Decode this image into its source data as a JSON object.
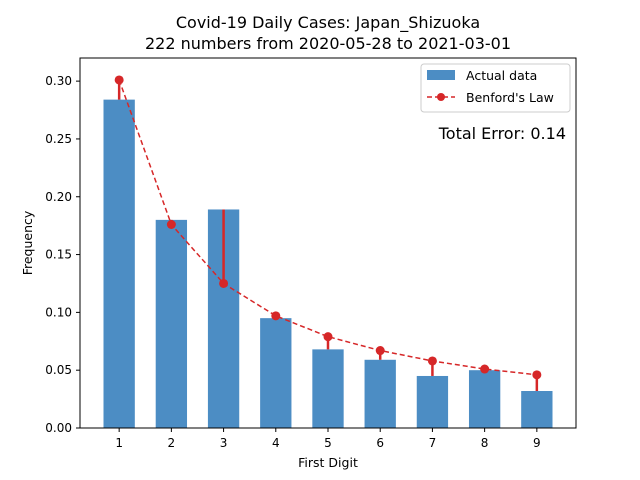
{
  "chart_data": {
    "type": "bar",
    "title": "Covid-19 Daily Cases: Japan_Shizuoka",
    "subtitle": "222 numbers from 2020-05-28 to 2021-03-01",
    "xlabel": "First Digit",
    "ylabel": "Frequency",
    "categories": [
      "1",
      "2",
      "3",
      "4",
      "5",
      "6",
      "7",
      "8",
      "9"
    ],
    "x": [
      1,
      2,
      3,
      4,
      5,
      6,
      7,
      8,
      9
    ],
    "ylim": [
      0,
      0.32
    ],
    "yticks": [
      "0.00",
      "0.05",
      "0.10",
      "0.15",
      "0.20",
      "0.25",
      "0.30"
    ],
    "grid": false,
    "legend_position": "top-right",
    "series": [
      {
        "name": "Actual data",
        "kind": "bar",
        "color": "#4c8dc4",
        "values": [
          0.284,
          0.18,
          0.189,
          0.095,
          0.068,
          0.059,
          0.045,
          0.05,
          0.032
        ]
      },
      {
        "name": "Benford's Law",
        "kind": "line-dashed-markers",
        "color": "#d62728",
        "values": [
          0.301,
          0.176,
          0.125,
          0.097,
          0.079,
          0.067,
          0.058,
          0.051,
          0.046
        ]
      }
    ],
    "annotation": {
      "text": "Total Error: 0.14",
      "color": "#d62728"
    }
  }
}
